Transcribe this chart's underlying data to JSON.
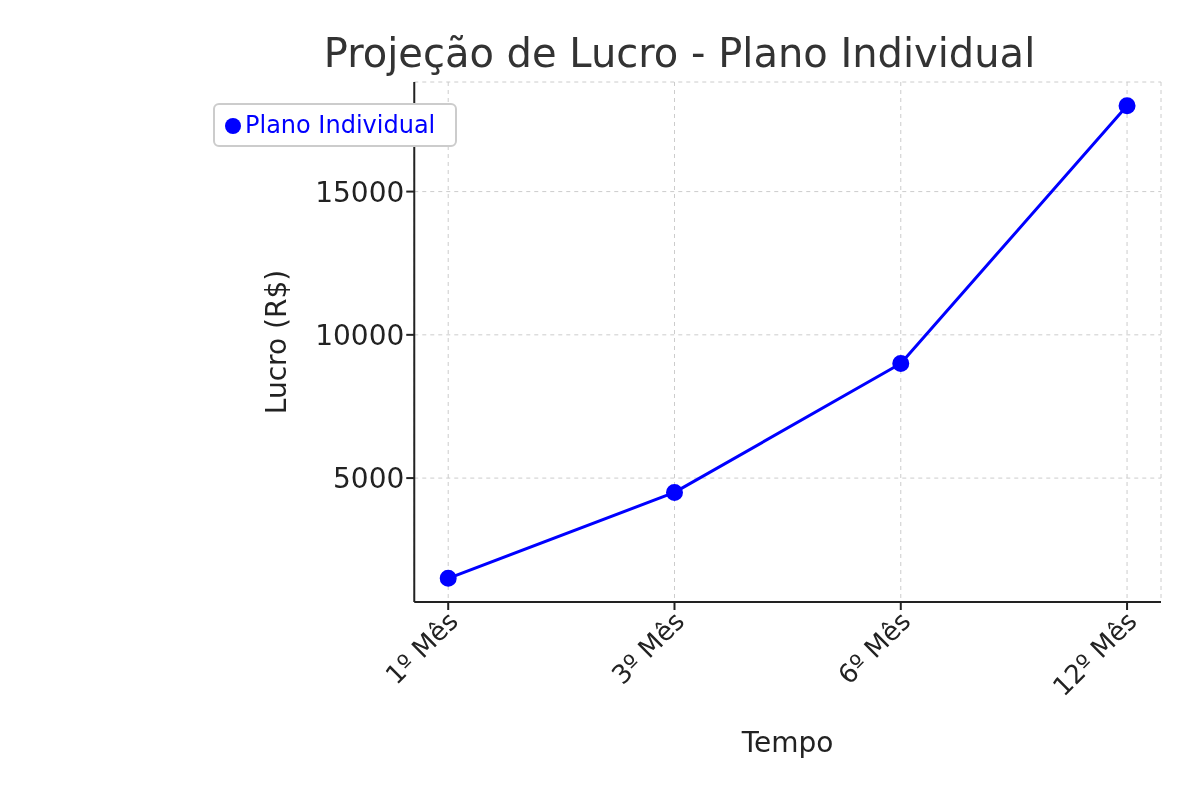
{
  "chart_data": {
    "type": "line",
    "title": "Projeção de Lucro - Plano Individual",
    "xlabel": "Tempo",
    "ylabel": "Lucro (R$)",
    "categories": [
      "1º Mês",
      "3º Mês",
      "6º Mês",
      "12º Mês"
    ],
    "series": [
      {
        "name": "Plano Individual",
        "color": "#0000ff",
        "values": [
          1500,
          4500,
          9000,
          18000
        ]
      }
    ],
    "ylim": [
      675,
      18825
    ],
    "yticks": [
      5000,
      10000,
      15000
    ],
    "grid": true,
    "legend": "top left",
    "marker": "circle",
    "line_style": "solid"
  }
}
